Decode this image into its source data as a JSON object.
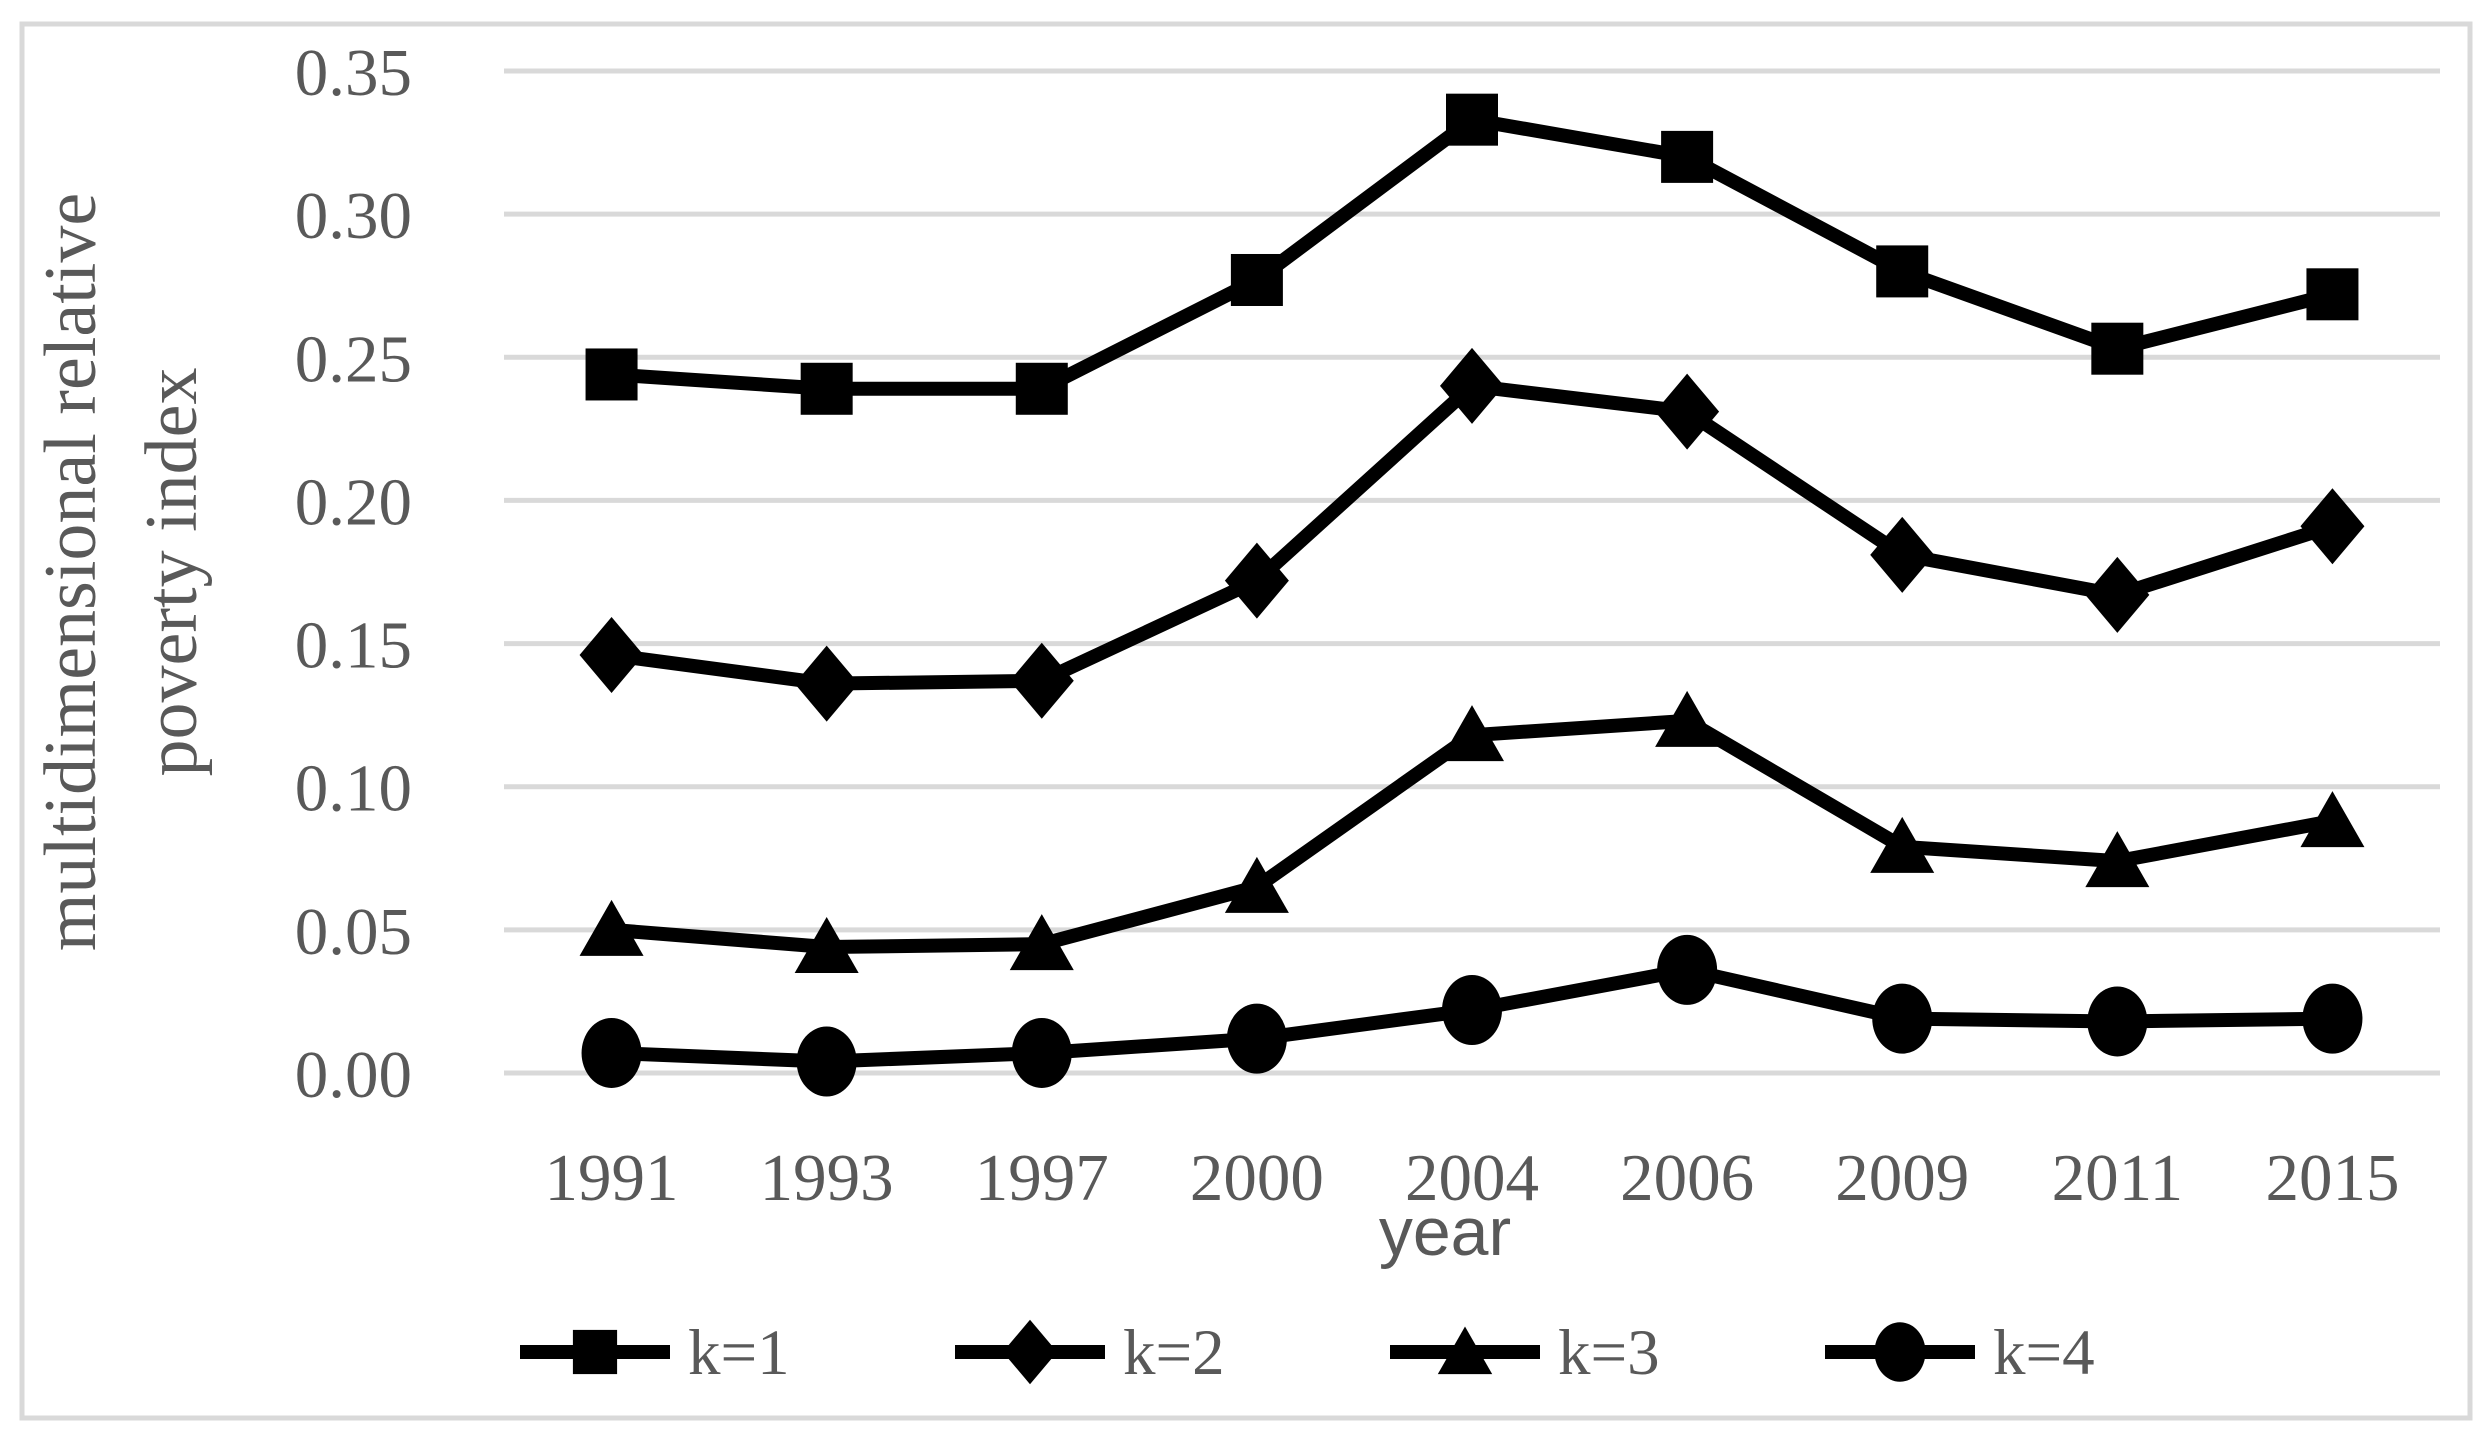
{
  "figure": {
    "y_axis_title_line1": "multidimensional relative",
    "y_axis_title_line2": "poverty index",
    "x_axis_title": "year"
  },
  "colors": {
    "series_line": "#000000",
    "gridline": "#d9d9d9",
    "frame_border": "#d9d9d9",
    "text_gray": "#595959",
    "background": "#ffffff"
  },
  "chart_data": {
    "type": "line",
    "title": "",
    "xlabel": "year",
    "ylabel": "multidimensional relative poverty index",
    "categories": [
      "1991",
      "1993",
      "1997",
      "2000",
      "2004",
      "2006",
      "2009",
      "2011",
      "2015"
    ],
    "series": [
      {
        "name": "k=1",
        "marker": "square-marker",
        "values": [
          0.244,
          0.239,
          0.239,
          0.277,
          0.333,
          0.32,
          0.28,
          0.253,
          0.272
        ]
      },
      {
        "name": "k=2",
        "marker": "diamond-marker",
        "values": [
          0.146,
          0.136,
          0.137,
          0.172,
          0.24,
          0.231,
          0.181,
          0.167,
          0.191
        ]
      },
      {
        "name": "k=3",
        "marker": "triangle-marker",
        "values": [
          0.05,
          0.044,
          0.045,
          0.065,
          0.118,
          0.123,
          0.079,
          0.074,
          0.088
        ]
      },
      {
        "name": "k=4",
        "marker": "circle-marker",
        "values": [
          0.007,
          0.004,
          0.007,
          0.012,
          0.022,
          0.036,
          0.019,
          0.018,
          0.019
        ]
      }
    ],
    "ylim": [
      0,
      0.35
    ],
    "ytick_step": 0.05,
    "ytick_labels": [
      "0.00",
      "0.05",
      "0.10",
      "0.15",
      "0.20",
      "0.25",
      "0.30",
      "0.35"
    ],
    "grid": true,
    "legend_position": "bottom"
  }
}
